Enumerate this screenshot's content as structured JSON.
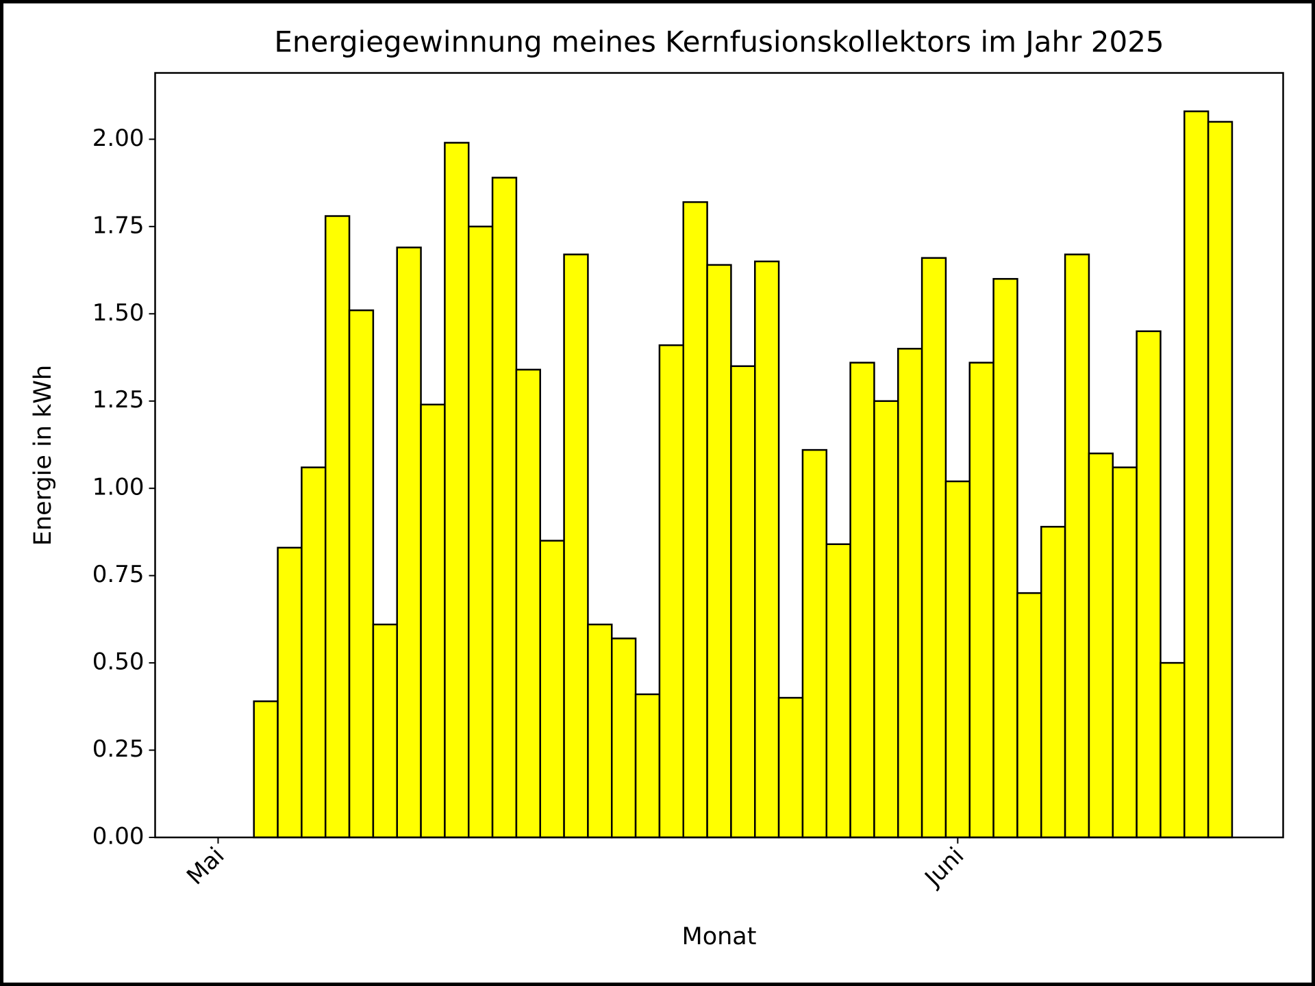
{
  "chart_data": {
    "type": "bar",
    "title": "Energiegewinnung meines Kernfusionskollektors im Jahr 2025",
    "xlabel": "Monat",
    "ylabel": "Energie in kWh",
    "categories": [
      "Mai",
      null,
      null,
      null,
      null,
      null,
      null,
      null,
      null,
      null,
      null,
      null,
      null,
      null,
      null,
      null,
      null,
      null,
      null,
      null,
      null,
      null,
      null,
      null,
      null,
      null,
      null,
      null,
      null,
      null,
      null,
      "Juni",
      null,
      null,
      null,
      null,
      null,
      null,
      null,
      null,
      null,
      null,
      null
    ],
    "values": [
      0,
      0,
      0.39,
      0.83,
      1.06,
      1.78,
      1.51,
      0.61,
      1.69,
      1.24,
      1.99,
      1.75,
      1.89,
      1.34,
      0.85,
      1.67,
      0.61,
      0.57,
      0.41,
      1.41,
      1.82,
      1.64,
      1.35,
      1.65,
      0.4,
      1.11,
      0.84,
      1.36,
      1.25,
      1.4,
      1.66,
      1.02,
      1.36,
      1.6,
      0.7,
      0.89,
      1.67,
      1.1,
      1.06,
      1.45,
      0.5,
      2.08,
      2.05
    ],
    "color": "#ffff00",
    "edgecolor": "#000000",
    "ylim": [
      0,
      2.19
    ],
    "yticks": [
      {
        "value": 0,
        "label": "0.00"
      },
      {
        "value": 0.25,
        "label": "0.25"
      },
      {
        "value": 0.5,
        "label": "0.50"
      },
      {
        "value": 0.75,
        "label": "0.75"
      },
      {
        "value": 1,
        "label": "1.00"
      },
      {
        "value": 1.25,
        "label": "1.25"
      },
      {
        "value": 1.5,
        "label": "1.50"
      },
      {
        "value": 1.75,
        "label": "1.75"
      },
      {
        "value": 2,
        "label": "2.00"
      }
    ],
    "grid": false
  }
}
